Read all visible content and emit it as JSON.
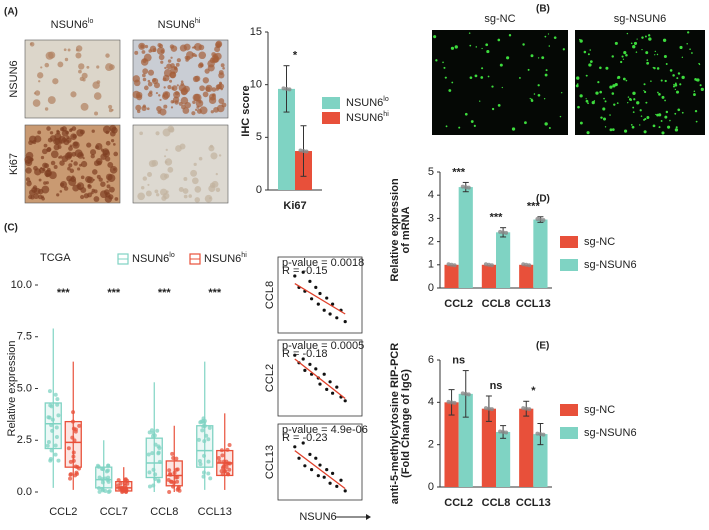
{
  "panels": [
    "(A)",
    "(B)",
    "(C)",
    "(D)",
    "(E)"
  ],
  "ihc": {
    "columns": [
      {
        "text": "NSUN6",
        "sup": "lo"
      },
      {
        "text": "NSUN6",
        "sup": "hi"
      }
    ],
    "rows": [
      "NSUN6",
      "Ki67"
    ]
  },
  "fluorescence": {
    "columns": [
      "sg-NC",
      "sg-NSUN6"
    ]
  },
  "chart_data": [
    {
      "type": "bar",
      "ylabel": "IHC score",
      "categories": [
        "Ki67"
      ],
      "series": [
        {
          "name": "NSUN6",
          "sup": "lo",
          "color": "#7fd3c3",
          "values": [
            9.6
          ],
          "errors": [
            2.2
          ]
        },
        {
          "name": "NSUN6",
          "sup": "hi",
          "color": "#e8503a",
          "values": [
            3.7
          ],
          "errors": [
            2.4
          ]
        }
      ],
      "annotations": [
        "*"
      ],
      "ylim": [
        0,
        15
      ],
      "yticks": [
        0,
        5,
        10,
        15
      ],
      "legend": "right"
    },
    {
      "type": "box",
      "title": "TCGA",
      "ylabel": "Relative expression",
      "categories": [
        "CCL2",
        "CCL7",
        "CCL8",
        "CCL13"
      ],
      "series": [
        {
          "name": "NSUN6",
          "sup": "lo",
          "color": "#7fd3c3",
          "min": [
            0.2,
            0,
            0,
            0.1
          ],
          "q1": [
            2.1,
            0.2,
            0.7,
            1.2
          ],
          "median": [
            3.3,
            0.6,
            1.4,
            2.0
          ],
          "q3": [
            4.3,
            1.2,
            2.6,
            3.2
          ],
          "max": [
            7.9,
            2.5,
            5.3,
            6.3
          ]
        },
        {
          "name": "NSUN6",
          "sup": "hi",
          "color": "#e8503a",
          "min": [
            0.1,
            0,
            0,
            0.1
          ],
          "q1": [
            1.2,
            0.05,
            0.3,
            0.8
          ],
          "median": [
            2.4,
            0.2,
            0.8,
            1.4
          ],
          "q3": [
            3.4,
            0.5,
            1.5,
            2.0
          ],
          "max": [
            6.3,
            1.2,
            3.2,
            3.8
          ]
        }
      ],
      "annotations": [
        "***",
        "***",
        "***",
        "***"
      ],
      "ylim": [
        0,
        10
      ],
      "yticks": [
        {
          "value": 0,
          "label": "0.0"
        },
        2.5,
        {
          "value": 5,
          "label": "5.0"
        },
        7.5,
        {
          "value": 10,
          "label": "10.0"
        }
      ],
      "legend": "top"
    },
    {
      "type": "scatter",
      "ylabel": "CCL8",
      "annotations": [
        "p-value = 0.0018",
        "R = -0.15"
      ],
      "xlim": [
        0,
        10
      ],
      "ylim": [
        0,
        10
      ],
      "x": [
        2,
        2.5,
        3,
        3.2,
        3.8,
        4,
        4.5,
        4.8,
        5,
        5.5,
        5.8,
        6.2,
        6.5,
        7,
        7.5,
        8
      ],
      "y": [
        7.5,
        6,
        8,
        5.5,
        6.8,
        4.5,
        6,
        3.8,
        5.2,
        3,
        4.6,
        2.5,
        3.8,
        2,
        3,
        1.5
      ],
      "trend": {
        "x": [
          2,
          8
        ],
        "y": [
          6.5,
          2.5
        ]
      }
    },
    {
      "type": "scatter",
      "ylabel": "CCL2",
      "annotations": [
        "p-value = 0.0005",
        "R = -0.18"
      ],
      "xlim": [
        0,
        10
      ],
      "ylim": [
        0,
        10
      ],
      "x": [
        2,
        2.5,
        3,
        3.2,
        3.8,
        4,
        4.5,
        4.8,
        5,
        5.5,
        5.8,
        6.2,
        6.5,
        7,
        7.5,
        8
      ],
      "y": [
        8,
        7,
        7.5,
        6,
        6.8,
        5.5,
        6.2,
        5,
        4.2,
        5.5,
        3.5,
        4.5,
        3,
        3.8,
        2.5,
        2
      ],
      "trend": {
        "x": [
          2,
          8
        ],
        "y": [
          7.5,
          2.3
        ]
      }
    },
    {
      "type": "scatter",
      "ylabel": "CCL13",
      "xlabel": "NSUN6",
      "annotations": [
        "p-value = 4.9e-06",
        "R = -0.23"
      ],
      "xlim": [
        0,
        10
      ],
      "ylim": [
        0,
        10
      ],
      "x": [
        2,
        2.5,
        3,
        3.2,
        3.8,
        4,
        4.5,
        4.8,
        5,
        5.5,
        5.8,
        6.2,
        6.5,
        7,
        7.5,
        8
      ],
      "y": [
        7,
        5.5,
        7.5,
        4.5,
        6,
        4,
        5.5,
        3.2,
        4.6,
        3,
        4,
        2.2,
        3.5,
        1.8,
        2.6,
        1.2
      ],
      "trend": {
        "x": [
          2,
          8
        ],
        "y": [
          6.5,
          1.5
        ]
      }
    },
    {
      "type": "bar",
      "ylabel": [
        "Relative expression",
        "of mRNA"
      ],
      "categories": [
        "CCL2",
        "CCL8",
        "CCL13"
      ],
      "series": [
        {
          "name": "sg-NC",
          "color": "#e8503a",
          "values": [
            1,
            1,
            1
          ]
        },
        {
          "name": "sg-NSUN6",
          "color": "#7fd3c3",
          "values": [
            4.35,
            2.4,
            2.95
          ],
          "errors": [
            0.2,
            0.2,
            0.12
          ]
        }
      ],
      "annotations": [
        "***",
        "***",
        "***"
      ],
      "ylim": [
        0,
        5
      ],
      "yticks": [
        0,
        1,
        2,
        3,
        4,
        5
      ],
      "legend": "right"
    },
    {
      "type": "bar",
      "ylabel": [
        "anti-5-methylcytosine RIP-PCR",
        "(Fold Change of IgG)"
      ],
      "categories": [
        "CCL2",
        "CCL8",
        "CCL13"
      ],
      "series": [
        {
          "name": "sg-NC",
          "color": "#e8503a",
          "values": [
            4.0,
            3.7,
            3.7
          ],
          "errors": [
            0.6,
            0.6,
            0.35
          ]
        },
        {
          "name": "sg-NSUN6",
          "color": "#7fd3c3",
          "values": [
            4.4,
            2.6,
            2.5
          ],
          "errors": [
            1.1,
            0.3,
            0.5
          ]
        }
      ],
      "annotations": [
        "ns",
        "ns",
        "*"
      ],
      "ylim": [
        0,
        6
      ],
      "yticks": [
        0,
        2,
        4,
        6
      ],
      "legend": "right"
    }
  ]
}
